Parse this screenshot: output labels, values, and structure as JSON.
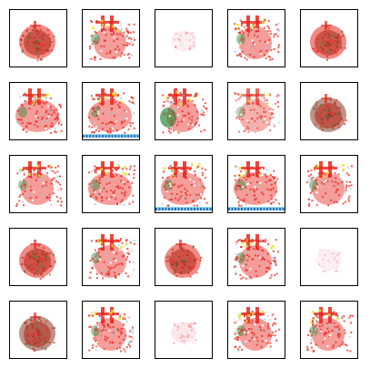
{
  "grid": {
    "rows": 5,
    "columns": 5,
    "background": "#ffffff",
    "frame_color": "#000000",
    "samples": [
      {
        "kind": "blob",
        "intensity": "strong"
      },
      {
        "kind": "sprite",
        "intensity": "strong"
      },
      {
        "kind": "faint",
        "intensity": "faint"
      },
      {
        "kind": "sprite",
        "intensity": "strong"
      },
      {
        "kind": "blob",
        "intensity": "strong"
      },
      {
        "kind": "sprite-wide",
        "intensity": "strong"
      },
      {
        "kind": "sprite-wide-blue",
        "intensity": "strong"
      },
      {
        "kind": "sprite-green",
        "intensity": "strong"
      },
      {
        "kind": "sprite",
        "intensity": "medium"
      },
      {
        "kind": "blob-brown",
        "intensity": "strong"
      },
      {
        "kind": "sprite",
        "intensity": "strong"
      },
      {
        "kind": "sprite-wide",
        "intensity": "strong"
      },
      {
        "kind": "sprite-wide-blue",
        "intensity": "strong"
      },
      {
        "kind": "sprite-wide-blue",
        "intensity": "strong"
      },
      {
        "kind": "sprite",
        "intensity": "strong"
      },
      {
        "kind": "blob",
        "intensity": "strong"
      },
      {
        "kind": "sprite",
        "intensity": "strong"
      },
      {
        "kind": "blob",
        "intensity": "strong"
      },
      {
        "kind": "sprite",
        "intensity": "strong"
      },
      {
        "kind": "faint",
        "intensity": "faint"
      },
      {
        "kind": "blob-brown",
        "intensity": "strong"
      },
      {
        "kind": "sprite",
        "intensity": "strong"
      },
      {
        "kind": "faint",
        "intensity": "medium"
      },
      {
        "kind": "sprite",
        "intensity": "strong"
      },
      {
        "kind": "sprite",
        "intensity": "strong"
      }
    ]
  },
  "palette": {
    "red": "#e8261c",
    "dark_red": "#b3261a",
    "brown": "#8a3a26",
    "green": "#2f8a3a",
    "yellow": "#e8e23a",
    "blue": "#1a5fb4",
    "cyan": "#7fd0e6",
    "pink": "#f3b0c0"
  }
}
